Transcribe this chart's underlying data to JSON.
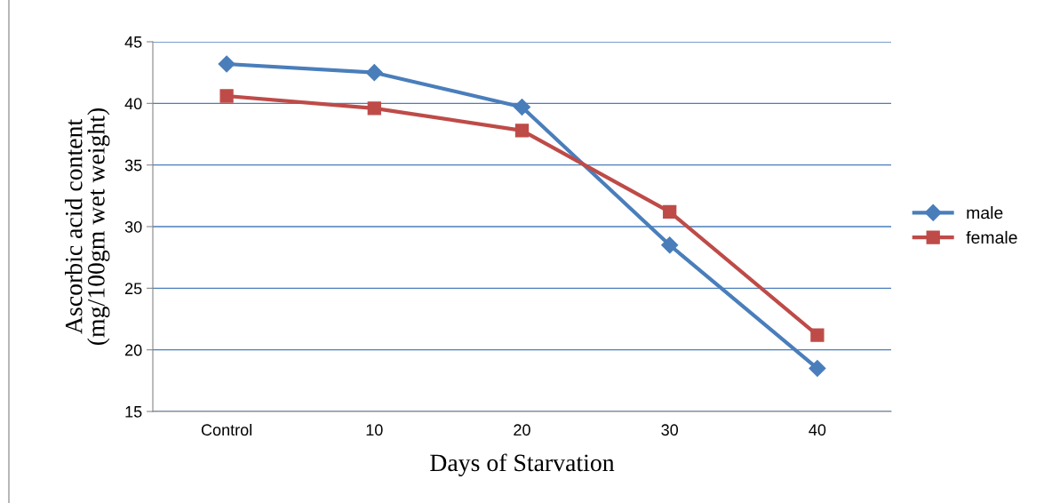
{
  "chart_data": {
    "type": "line",
    "xlabel": "Days of Starvation",
    "ylabel": "Ascorbic acid content\n(mg/100gm wet weight)",
    "categories": [
      "Control",
      "10",
      "20",
      "30",
      "40"
    ],
    "series": [
      {
        "name": "male",
        "color": "#4a7ebb",
        "marker": "diamond",
        "values": [
          43.2,
          42.5,
          39.7,
          28.5,
          18.5
        ]
      },
      {
        "name": "female",
        "color": "#be4b48",
        "marker": "square",
        "values": [
          40.6,
          39.6,
          37.8,
          31.2,
          21.2
        ]
      }
    ],
    "ylim": [
      15,
      45
    ],
    "yticks": [
      15,
      20,
      25,
      30,
      35,
      40,
      45
    ],
    "grid": "y",
    "legend": "right"
  }
}
